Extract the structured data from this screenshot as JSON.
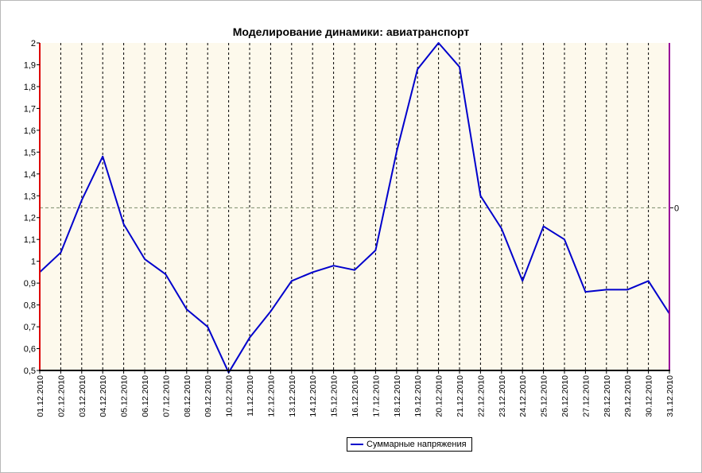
{
  "colors": {
    "plot_background": "#fdf9ec",
    "series_line": "#0000cc",
    "left_axis": "#dd0000",
    "right_axis": "#990099",
    "bottom_axis": "#000000",
    "grid": "#000000",
    "reference_line": "#7a8a6a"
  },
  "chart_data": {
    "type": "line",
    "title": "Моделирование динамики: авиатранспорт",
    "xlabel": "",
    "ylabel": "",
    "ylim": [
      0.5,
      2
    ],
    "yticks": [
      "0,5",
      "0,6",
      "0,7",
      "0,8",
      "0,9",
      "1",
      "1,1",
      "1,2",
      "1,3",
      "1,4",
      "1,5",
      "1,6",
      "1,7",
      "1,8",
      "1,9",
      "2"
    ],
    "right_axis_label": "0",
    "reference_line_value": 1.245,
    "grid": true,
    "legend_position": "bottom",
    "categories": [
      "01.12.2010",
      "02.12.2010",
      "03.12.2010",
      "04.12.2010",
      "05.12.2010",
      "06.12.2010",
      "07.12.2010",
      "08.12.2010",
      "09.12.2010",
      "10.12.2010",
      "11.12.2010",
      "12.12.2010",
      "13.12.2010",
      "14.12.2010",
      "15.12.2010",
      "16.12.2010",
      "17.12.2010",
      "18.12.2010",
      "19.12.2010",
      "20.12.2010",
      "21.12.2010",
      "22.12.2010",
      "23.12.2010",
      "24.12.2010",
      "25.12.2010",
      "26.12.2010",
      "27.12.2010",
      "28.12.2010",
      "29.12.2010",
      "30.12.2010",
      "31.12.2010"
    ],
    "series": [
      {
        "name": "Суммарные напряжения",
        "values": [
          0.95,
          1.04,
          1.28,
          1.48,
          1.17,
          1.01,
          0.94,
          0.78,
          0.7,
          0.49,
          0.65,
          0.77,
          0.91,
          0.95,
          0.98,
          0.96,
          1.05,
          1.5,
          1.88,
          2.0,
          1.89,
          1.3,
          1.15,
          0.91,
          1.16,
          1.1,
          0.86,
          0.87,
          0.87,
          0.91,
          0.76
        ]
      }
    ]
  }
}
